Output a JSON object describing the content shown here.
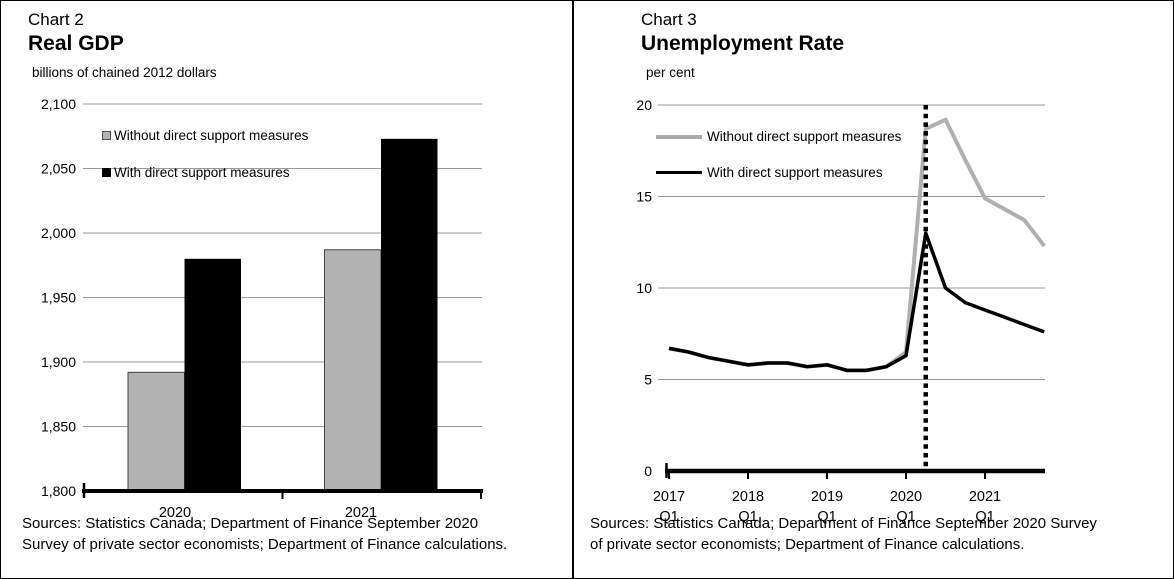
{
  "panels": [
    {
      "chart_label": "Chart 2",
      "title": "Real GDP",
      "unit": "billions of chained 2012 dollars",
      "legend": [
        "Without direct support measures",
        "With direct support measures"
      ],
      "sources": [
        "Sources: Statistics Canada; Department of Finance September 2020",
        "Survey of private sector economists; Department of Finance calculations."
      ]
    },
    {
      "chart_label": "Chart 3",
      "title": "Unemployment Rate",
      "unit": "per cent",
      "legend": [
        "Without direct support measures",
        "With direct support measures"
      ],
      "sources": [
        "Sources: Statistics Canada; Department of Finance September 2020 Survey",
        "of private sector economists; Department of Finance calculations."
      ]
    }
  ],
  "colors": {
    "gray_series": "#b0b0b0",
    "gray_bar_fill": "#b3b3b3",
    "gray_bar_border": "#404040",
    "black_series": "#000000",
    "gridline": "#999999"
  },
  "chart_data": [
    {
      "type": "bar",
      "title": "Real GDP",
      "ylabel": "billions of chained 2012 dollars",
      "categories": [
        "2020",
        "2021"
      ],
      "series": [
        {
          "name": "Without direct support measures",
          "color": "#b3b3b3",
          "values": [
            1892,
            1987
          ]
        },
        {
          "name": "With direct support measures",
          "color": "#000000",
          "values": [
            1980,
            2073
          ]
        }
      ],
      "ylim": [
        1800,
        2100
      ],
      "yticks": [
        1800,
        1850,
        1900,
        1950,
        2000,
        2050,
        2100
      ],
      "ytick_labels": [
        "1,800",
        "1,850",
        "1,900",
        "1,950",
        "2,000",
        "2,050",
        "2,100"
      ],
      "grid": true,
      "legend_position": "top-left-inside"
    },
    {
      "type": "line",
      "title": "Unemployment Rate",
      "ylabel": "per cent",
      "x": [
        "2017 Q1",
        "2017 Q2",
        "2017 Q3",
        "2017 Q4",
        "2018 Q1",
        "2018 Q2",
        "2018 Q3",
        "2018 Q4",
        "2019 Q1",
        "2019 Q2",
        "2019 Q3",
        "2019 Q4",
        "2020 Q1",
        "2020 Q2",
        "2020 Q3",
        "2020 Q4",
        "2021 Q1",
        "2021 Q2",
        "2021 Q3",
        "2021 Q4"
      ],
      "series": [
        {
          "name": "Without direct support measures",
          "color": "#b0b0b0",
          "values": [
            6.7,
            6.5,
            6.2,
            6.0,
            5.8,
            5.9,
            5.9,
            5.7,
            5.8,
            5.5,
            5.5,
            5.7,
            6.5,
            18.7,
            19.2,
            17.0,
            14.9,
            14.3,
            13.7,
            12.3
          ]
        },
        {
          "name": "With direct support measures",
          "color": "#000000",
          "values": [
            6.7,
            6.5,
            6.2,
            6.0,
            5.8,
            5.9,
            5.9,
            5.7,
            5.8,
            5.5,
            5.5,
            5.7,
            6.3,
            13.0,
            10.0,
            9.2,
            8.8,
            8.4,
            8.0,
            7.6
          ]
        }
      ],
      "ylim": [
        0,
        20
      ],
      "yticks": [
        0,
        5,
        10,
        15,
        20
      ],
      "ytick_labels": [
        "0",
        "5",
        "10",
        "15",
        "20"
      ],
      "major_xticks": [
        {
          "index": 0,
          "line1": "2017",
          "line2": "Q1"
        },
        {
          "index": 4,
          "line1": "2018",
          "line2": "Q1"
        },
        {
          "index": 8,
          "line1": "2019",
          "line2": "Q1"
        },
        {
          "index": 12,
          "line1": "2020",
          "line2": "Q1"
        },
        {
          "index": 16,
          "line1": "2021",
          "line2": "Q1"
        }
      ],
      "vline": {
        "x": "2020 Q2",
        "style": "dotted"
      },
      "grid": true,
      "legend_position": "top-left-inside"
    }
  ]
}
